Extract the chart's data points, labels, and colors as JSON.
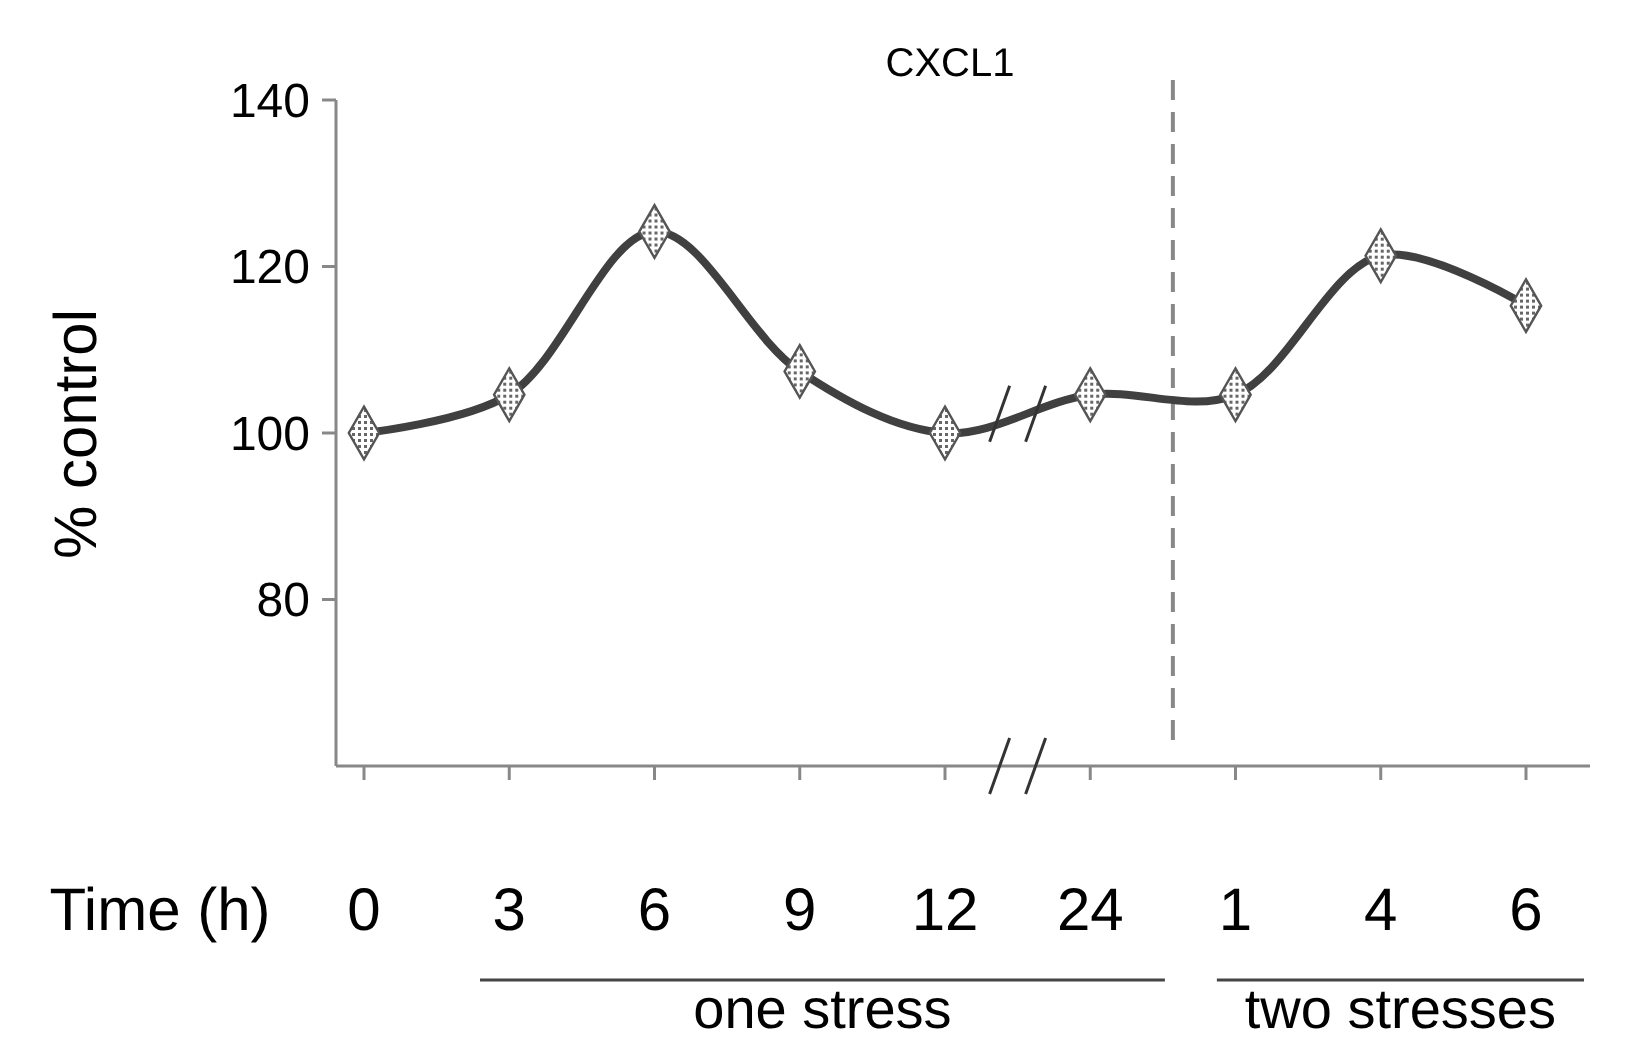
{
  "chart_data": {
    "type": "line",
    "title": "CXCL1",
    "xlabel": "Time (h)",
    "ylabel": "% control",
    "categories": [
      "0",
      "3",
      "6",
      "9",
      "12",
      "24",
      "1",
      "4",
      "6"
    ],
    "series": [
      {
        "color": "#404040",
        "values": [
          100,
          104.6,
          124.2,
          107.4,
          100,
          104.6,
          104.6,
          121.3,
          115.3
        ]
      }
    ],
    "ylim": [
      60,
      140
    ],
    "yticks": [
      80,
      100,
      120,
      140
    ],
    "annotations": [
      "one stress",
      "two stresses"
    ],
    "marker": "diamond",
    "line_style": "solid",
    "grid": false
  }
}
